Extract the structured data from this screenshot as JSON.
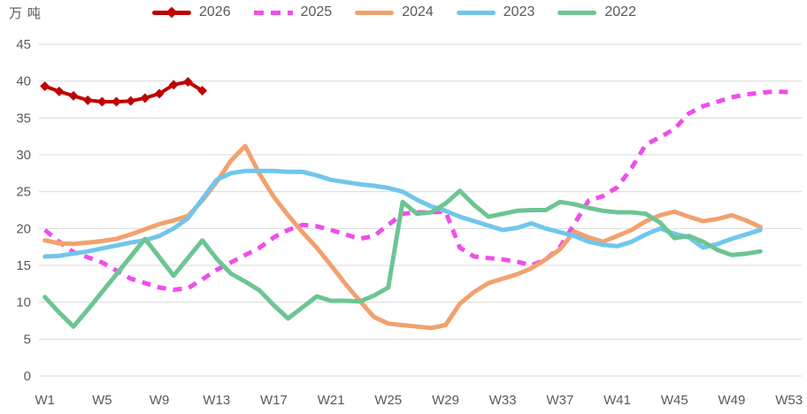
{
  "colors": {
    "grid": "#d9d9d9",
    "axis_text": "#595959",
    "background": "#ffffff"
  },
  "legend": [
    {
      "label": "2026",
      "color": "#c00000",
      "style": "solid-diamond"
    },
    {
      "label": "2025",
      "color": "#f04deb",
      "style": "dashed"
    },
    {
      "label": "2024",
      "color": "#f2a16e",
      "style": "solid"
    },
    {
      "label": "2023",
      "color": "#70c6ec",
      "style": "solid"
    },
    {
      "label": "2022",
      "color": "#6cc593",
      "style": "solid"
    }
  ],
  "chart_data": {
    "type": "line",
    "title": "",
    "xlabel": "",
    "ylabel": "万吨",
    "ylim": [
      0,
      45
    ],
    "y_ticks": [
      0,
      5,
      10,
      15,
      20,
      25,
      30,
      35,
      40,
      45
    ],
    "x_tick_weeks": [
      1,
      5,
      9,
      13,
      17,
      21,
      25,
      29,
      33,
      37,
      41,
      45,
      49,
      53
    ],
    "x_tick_labels": [
      "W1",
      "W5",
      "W9",
      "W13",
      "W17",
      "W21",
      "W25",
      "W29",
      "W33",
      "W37",
      "W41",
      "W45",
      "W49",
      "W53"
    ],
    "x_range_weeks": [
      1,
      53
    ],
    "grid": true,
    "legend_position": "top",
    "series": [
      {
        "name": "2025",
        "color": "#f04deb",
        "dash": [
          10,
          8
        ],
        "marker": null,
        "line_width": 5,
        "start_week": 1,
        "values": [
          19.8,
          18.2,
          16.8,
          16.1,
          15.4,
          14.3,
          13.2,
          12.6,
          12.0,
          11.7,
          11.9,
          13.1,
          14.4,
          15.4,
          16.4,
          17.4,
          18.8,
          19.8,
          20.5,
          20.3,
          19.8,
          19.2,
          18.6,
          19.0,
          20.5,
          22.0,
          22.2,
          22.2,
          22.3,
          17.4,
          16.2,
          16.0,
          15.8,
          15.5,
          15.0,
          15.8,
          17.5,
          20.6,
          23.8,
          24.4,
          25.6,
          28.2,
          31.4,
          32.4,
          33.5,
          35.6,
          36.6,
          37.2,
          37.8,
          38.2,
          38.4,
          38.6,
          38.5
        ]
      },
      {
        "name": "2024",
        "color": "#f2a16e",
        "dash": null,
        "marker": null,
        "line_width": 5,
        "start_week": 1,
        "values": [
          18.4,
          18.0,
          17.9,
          18.1,
          18.3,
          18.6,
          19.2,
          19.9,
          20.6,
          21.1,
          21.7,
          23.8,
          26.3,
          29.2,
          31.2,
          27.4,
          24.3,
          21.8,
          19.5,
          17.4,
          15.0,
          12.5,
          10.2,
          8.0,
          7.1,
          6.9,
          6.7,
          6.5,
          6.9,
          9.8,
          11.4,
          12.6,
          13.2,
          13.8,
          14.6,
          15.8,
          17.2,
          19.6,
          18.8,
          18.2,
          19.0,
          19.8,
          21.0,
          21.8,
          22.3,
          21.6,
          21.0,
          21.3,
          21.8,
          21.1,
          20.2
        ]
      },
      {
        "name": "2023",
        "color": "#70c6ec",
        "dash": null,
        "marker": null,
        "line_width": 5,
        "start_week": 1,
        "values": [
          16.2,
          16.3,
          16.6,
          16.9,
          17.3,
          17.7,
          18.1,
          18.4,
          19.0,
          20.0,
          21.4,
          24.0,
          26.6,
          27.5,
          27.8,
          27.8,
          27.8,
          27.7,
          27.7,
          27.2,
          26.6,
          26.3,
          26.0,
          25.8,
          25.5,
          25.0,
          23.9,
          23.0,
          22.4,
          21.6,
          21.0,
          20.4,
          19.8,
          20.1,
          20.7,
          20.0,
          19.5,
          19.0,
          18.2,
          17.8,
          17.6,
          18.2,
          19.2,
          20.0,
          19.3,
          18.8,
          17.4,
          17.9,
          18.6,
          19.2,
          19.8
        ]
      },
      {
        "name": "2022",
        "color": "#6cc593",
        "dash": null,
        "marker": null,
        "line_width": 5,
        "start_week": 1,
        "values": [
          10.7,
          8.6,
          6.7,
          9.0,
          11.4,
          13.8,
          16.2,
          18.6,
          16.1,
          13.6,
          16.0,
          18.4,
          15.9,
          13.9,
          12.8,
          11.6,
          9.6,
          7.8,
          9.3,
          10.8,
          10.2,
          10.2,
          10.1,
          10.9,
          12.0,
          23.6,
          22.0,
          22.2,
          23.4,
          25.1,
          23.2,
          21.6,
          22.0,
          22.4,
          22.5,
          22.5,
          23.6,
          23.3,
          22.8,
          22.4,
          22.2,
          22.2,
          22.0,
          20.8,
          18.7,
          19.0,
          18.2,
          17.1,
          16.4,
          16.6,
          16.9
        ]
      },
      {
        "name": "2026",
        "color": "#c00000",
        "dash": null,
        "marker": "diamond",
        "line_width": 4,
        "start_week": 1,
        "values": [
          39.3,
          38.6,
          38.0,
          37.4,
          37.2,
          37.2,
          37.3,
          37.7,
          38.3,
          39.5,
          39.9,
          38.7
        ]
      }
    ]
  }
}
